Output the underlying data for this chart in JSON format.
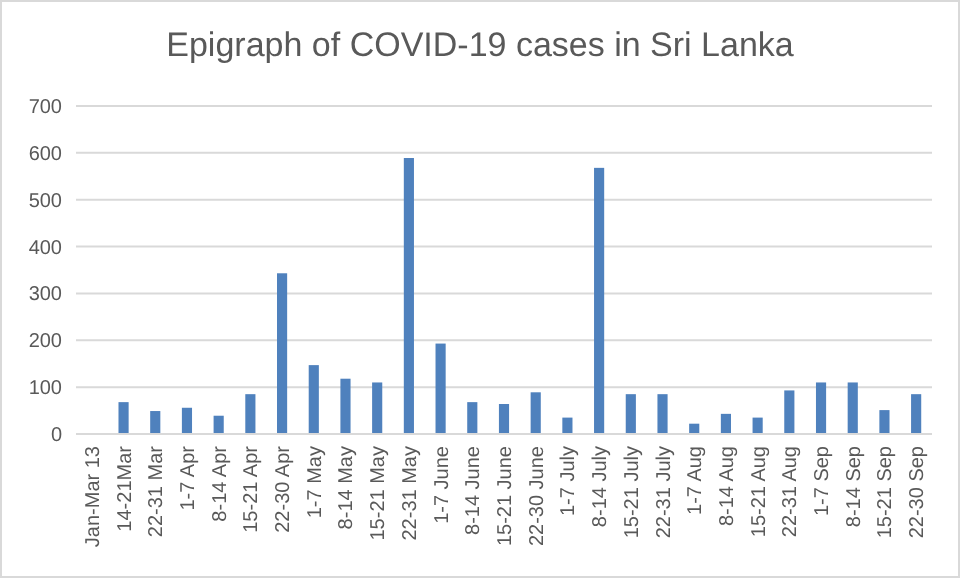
{
  "chart_data": {
    "type": "bar",
    "title": "Epigraph of COVID-19 cases in Sri Lanka",
    "categories": [
      "Jan-Mar 13",
      "14-21Mar",
      "22-31 Mar",
      "1-7 Apr",
      "8-14 Apr",
      "15-21 Apr",
      "22-30 Apr",
      "1-7 May",
      "8-14 May",
      "15-21 May",
      "22-31 May",
      "1-7 June",
      "8-14 June",
      "15-21 June",
      "22-30 June",
      "1-7 July",
      "8-14 July",
      "15-21 July",
      "22-31 July",
      "1-7 Aug",
      "8-14 Aug",
      "15-21 Aug",
      "22-31 Aug",
      "1-7 Sep",
      "8-14 Sep",
      "15-21 Sep",
      "22-30 Sep"
    ],
    "values": [
      0,
      68,
      49,
      56,
      39,
      85,
      343,
      147,
      118,
      110,
      589,
      193,
      68,
      64,
      89,
      35,
      568,
      85,
      85,
      22,
      43,
      35,
      93,
      110,
      110,
      51,
      85
    ],
    "color": "#4f81bd",
    "ylim": [
      0,
      700
    ],
    "yticks": [
      0,
      100,
      200,
      300,
      400,
      500,
      600,
      700
    ],
    "grid": "y"
  }
}
